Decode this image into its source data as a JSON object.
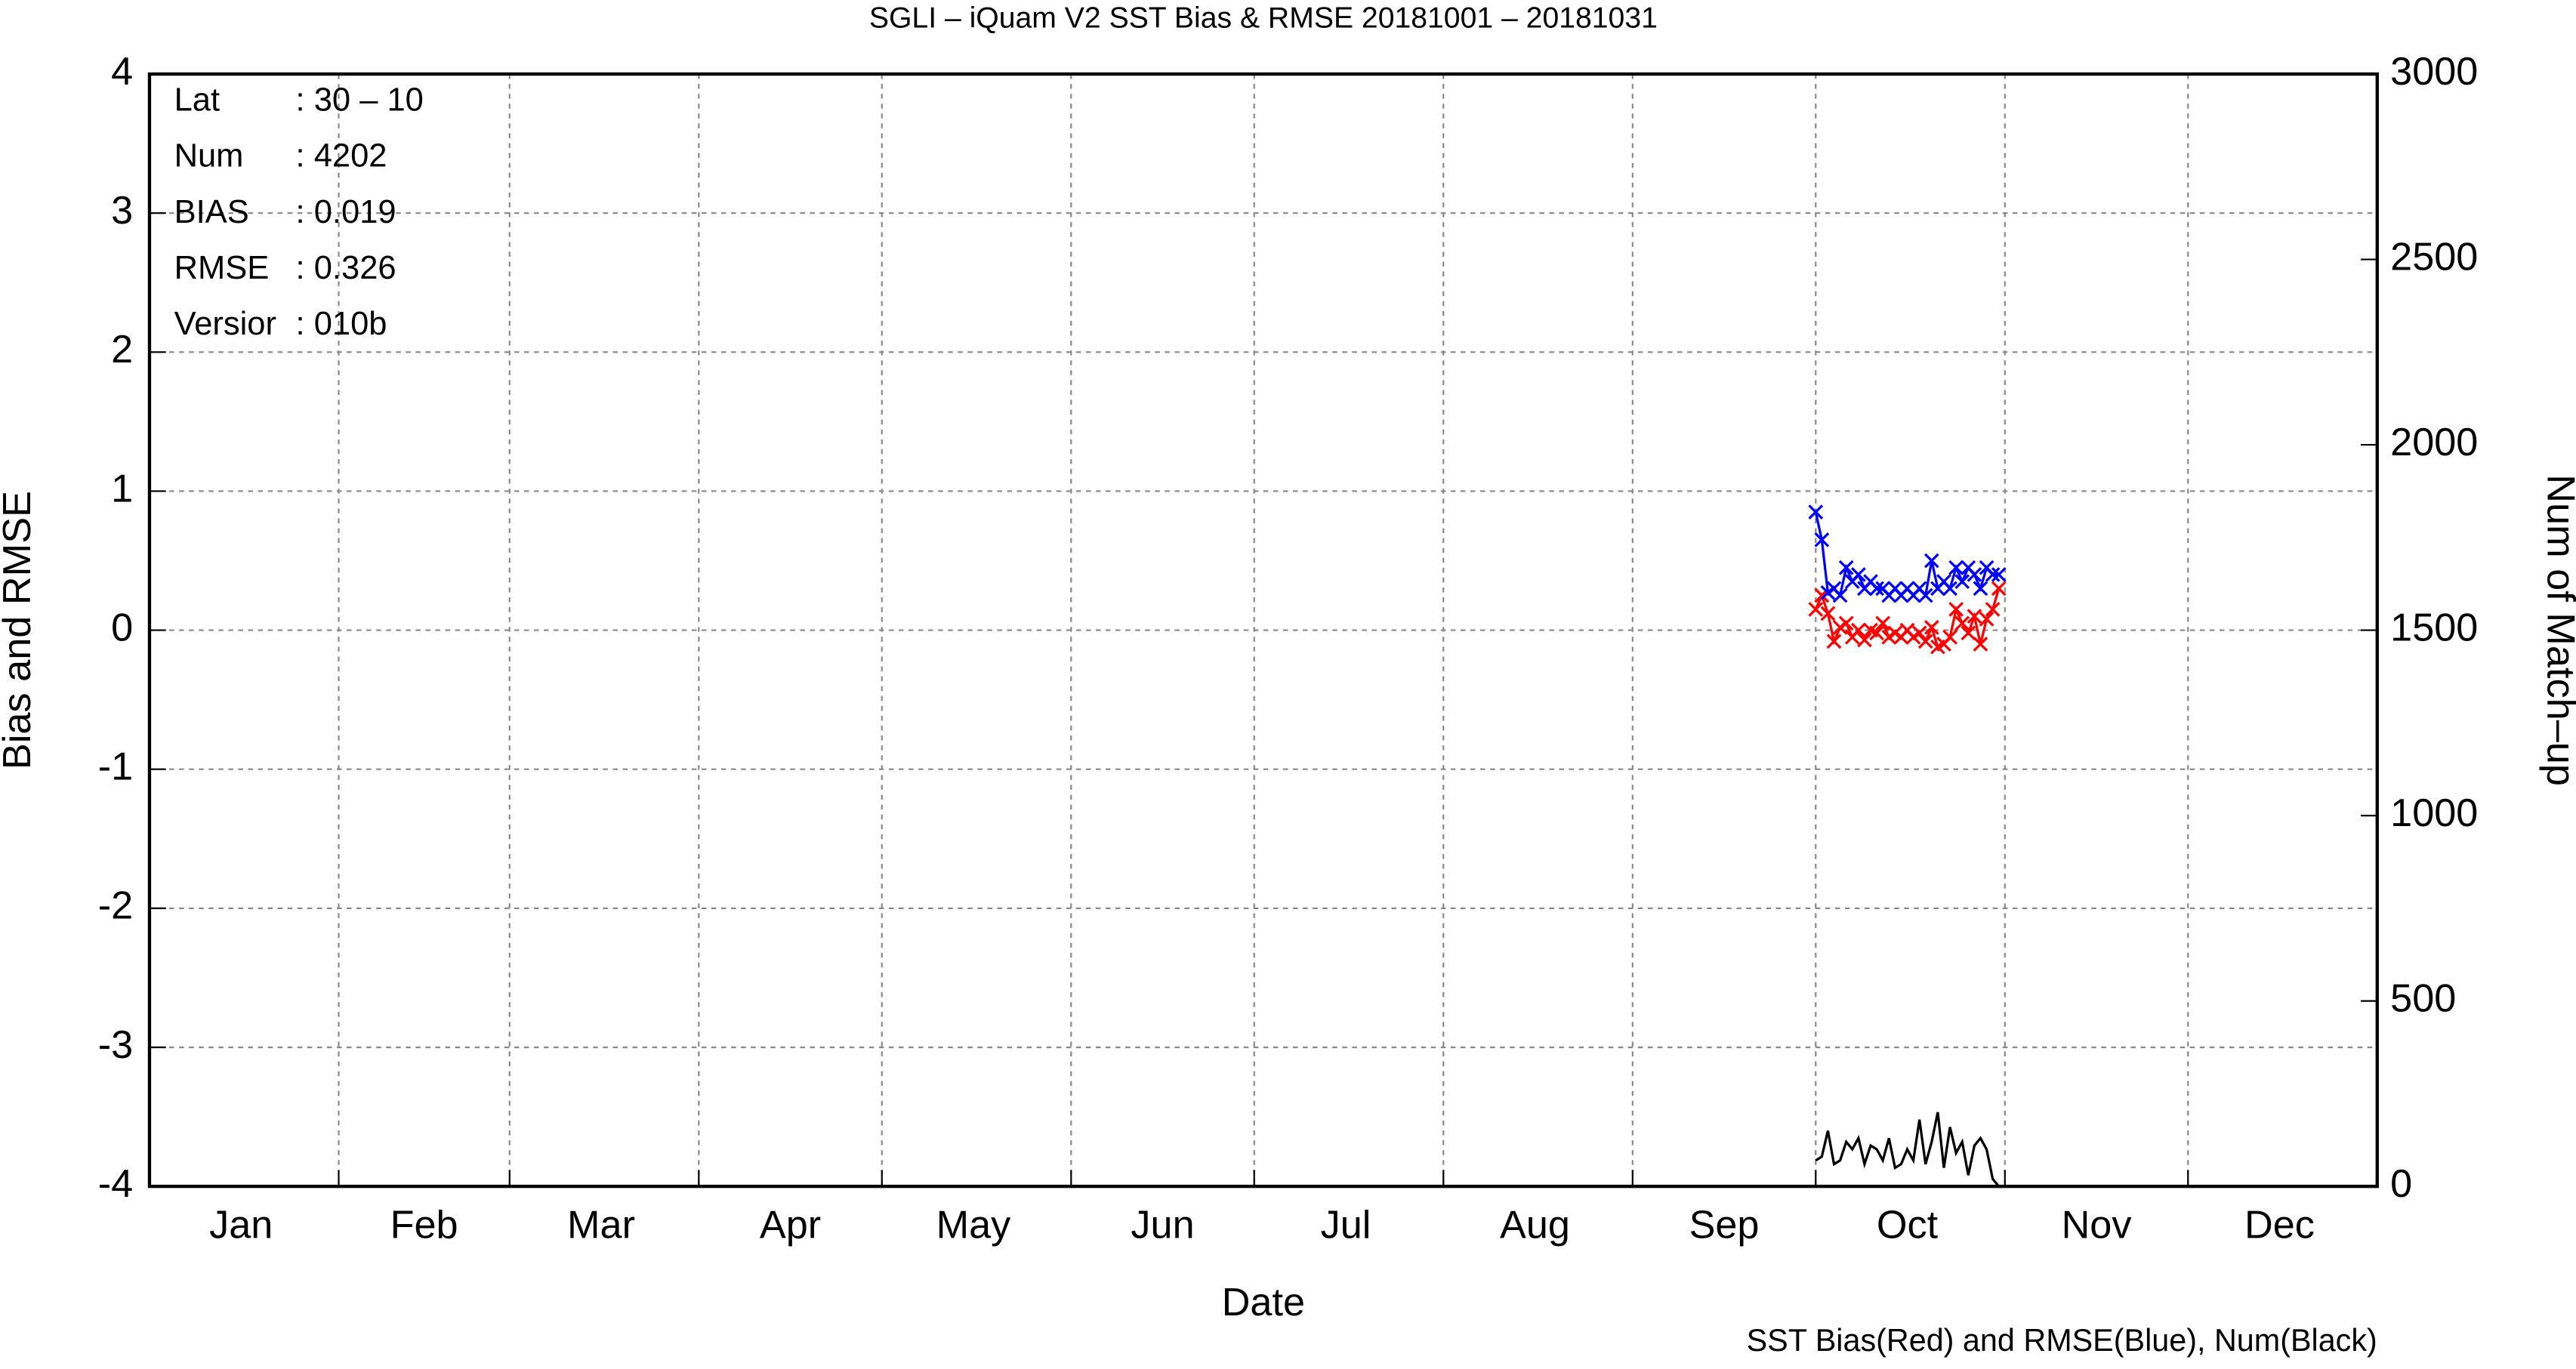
{
  "chart_data": {
    "type": "line",
    "title": "SGLI – iQuam V2 SST Bias & RMSE 20181001 – 20181031",
    "xlabel": "Date",
    "ylabel": "Bias and RMSE",
    "y2label": "Num of Match–up",
    "footnote": "SST Bias(Red) and RMSE(Blue), Num(Black)",
    "info": [
      {
        "key": "Lat",
        "value": ": 30 – 10"
      },
      {
        "key": "Num",
        "value": ": 4202"
      },
      {
        "key": "BIAS",
        "value": ": 0.019"
      },
      {
        "key": "RMSE",
        "value": ": 0.326"
      },
      {
        "key": "Versior",
        "value": ": 010b"
      }
    ],
    "xlim": [
      "2018-01-01",
      "2019-01-01"
    ],
    "xgrid": [
      "2018-02-01",
      "2018-03-01",
      "2018-04-01",
      "2018-05-01",
      "2018-06-01",
      "2018-07-01",
      "2018-08-01",
      "2018-09-01",
      "2018-10-01",
      "2018-11-01",
      "2018-12-01"
    ],
    "xticks": [
      {
        "value": "2018-01-16",
        "label": "Jan"
      },
      {
        "value": "2018-02-15",
        "label": "Feb"
      },
      {
        "value": "2018-03-16",
        "label": "Mar"
      },
      {
        "value": "2018-04-16",
        "label": "Apr"
      },
      {
        "value": "2018-05-16",
        "label": "May"
      },
      {
        "value": "2018-06-16",
        "label": "Jun"
      },
      {
        "value": "2018-07-16",
        "label": "Jul"
      },
      {
        "value": "2018-08-16",
        "label": "Aug"
      },
      {
        "value": "2018-09-16",
        "label": "Sep"
      },
      {
        "value": "2018-10-16",
        "label": "Oct"
      },
      {
        "value": "2018-11-16",
        "label": "Nov"
      },
      {
        "value": "2018-12-16",
        "label": "Dec"
      }
    ],
    "ylim": [
      -4,
      4
    ],
    "yticks": [
      -4,
      -3,
      -2,
      -1,
      0,
      1,
      2,
      3,
      4
    ],
    "y2lim": [
      0,
      3000
    ],
    "y2ticks": [
      0,
      500,
      1000,
      1500,
      2000,
      2500,
      3000
    ],
    "grid": true,
    "x": [
      "2018-10-01",
      "2018-10-02",
      "2018-10-03",
      "2018-10-04",
      "2018-10-05",
      "2018-10-06",
      "2018-10-07",
      "2018-10-08",
      "2018-10-09",
      "2018-10-10",
      "2018-10-11",
      "2018-10-12",
      "2018-10-13",
      "2018-10-14",
      "2018-10-15",
      "2018-10-16",
      "2018-10-17",
      "2018-10-18",
      "2018-10-19",
      "2018-10-20",
      "2018-10-21",
      "2018-10-22",
      "2018-10-23",
      "2018-10-24",
      "2018-10-25",
      "2018-10-26",
      "2018-10-27",
      "2018-10-28",
      "2018-10-29",
      "2018-10-30",
      "2018-10-31"
    ],
    "series": [
      {
        "name": "Bias",
        "color": "#ff0000",
        "markers": true,
        "values": [
          0.15,
          0.25,
          0.12,
          -0.08,
          0.02,
          0.05,
          -0.05,
          0.0,
          -0.07,
          0.0,
          -0.02,
          0.05,
          -0.05,
          -0.02,
          -0.05,
          0.0,
          -0.05,
          -0.02,
          -0.08,
          0.02,
          -0.12,
          -0.1,
          -0.05,
          0.15,
          0.05,
          -0.02,
          0.1,
          -0.1,
          0.08,
          0.15,
          0.3
        ]
      },
      {
        "name": "RMSE",
        "color": "#0000ff",
        "markers": true,
        "values": [
          0.85,
          0.65,
          0.27,
          0.3,
          0.25,
          0.45,
          0.35,
          0.4,
          0.3,
          0.35,
          0.3,
          0.3,
          0.25,
          0.3,
          0.25,
          0.3,
          0.25,
          0.3,
          0.25,
          0.5,
          0.3,
          0.35,
          0.3,
          0.45,
          0.35,
          0.45,
          0.4,
          0.3,
          0.45,
          0.4,
          0.4
        ]
      },
      {
        "name": "Num",
        "color": "#000000",
        "markers": false,
        "axis": "y2",
        "values": [
          70,
          80,
          150,
          60,
          70,
          120,
          100,
          130,
          60,
          110,
          100,
          70,
          130,
          50,
          60,
          100,
          70,
          180,
          60,
          120,
          200,
          50,
          160,
          90,
          120,
          30,
          110,
          130,
          100,
          20,
          0
        ]
      }
    ]
  }
}
